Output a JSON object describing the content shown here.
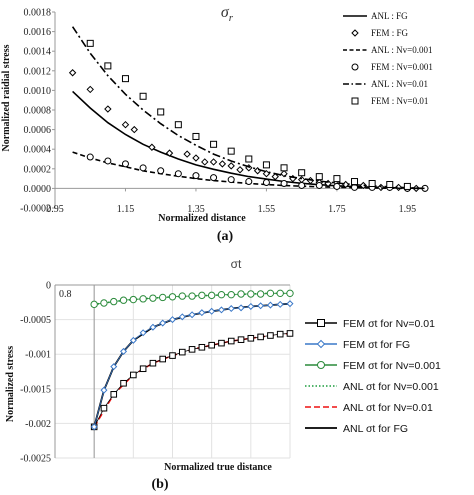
{
  "chart_data": [
    {
      "type": "line",
      "panel_label": "(a)",
      "title": "σr",
      "title_symbol": "σ",
      "title_subscript": "r",
      "xlabel": "Normalized distance",
      "ylabel": "Normalized  raidial stress",
      "xlim": [
        0.95,
        2.0
      ],
      "ylim": [
        -0.0002,
        0.0018
      ],
      "xticks": [
        "0.95",
        "1.15",
        "1.35",
        "1.55",
        "1.75",
        "1.95"
      ],
      "yticks": [
        "-0.0002",
        "0.0000",
        "0.0002",
        "0.0004",
        "0.0006",
        "0.0008",
        "0.0010",
        "0.0012",
        "0.0014",
        "0.0016",
        "0.0018"
      ],
      "grid": false,
      "legend_position": "top-right",
      "series": [
        {
          "name": "ANL : FG",
          "style": "solid",
          "x": [
            1.0,
            1.05,
            1.1,
            1.15,
            1.2,
            1.25,
            1.3,
            1.35,
            1.4,
            1.45,
            1.5,
            1.55,
            1.6,
            1.65,
            1.7,
            1.75,
            1.8,
            1.85,
            1.9,
            1.95,
            2.0
          ],
          "y": [
            0.00099,
            0.00082,
            0.00067,
            0.00055,
            0.00045,
            0.00037,
            0.0003,
            0.00024,
            0.000195,
            0.000155,
            0.00012,
            9.5e-05,
            7e-05,
            5.2e-05,
            3.8e-05,
            2.7e-05,
            1.8e-05,
            1.2e-05,
            7e-06,
            3e-06,
            0.0
          ]
        },
        {
          "name": "FEM : FG",
          "style": "diamond",
          "x": [
            1.0,
            1.05,
            1.1,
            1.15,
            1.175,
            1.225,
            1.275,
            1.325,
            1.35,
            1.375,
            1.4,
            1.425,
            1.45,
            1.475,
            1.5,
            1.525,
            1.55,
            1.575,
            1.6,
            1.625,
            1.65,
            1.675,
            1.7,
            1.725,
            1.75,
            1.775,
            1.8,
            1.825,
            1.85,
            1.875,
            1.9,
            1.925,
            1.95,
            1.975,
            2.0
          ],
          "y": [
            0.00118,
            0.00101,
            0.00081,
            0.00065,
            0.0006,
            0.00042,
            0.00036,
            0.00035,
            0.00031,
            0.00027,
            0.00027,
            0.00025,
            0.00023,
            0.00019,
            0.00021,
            0.00018,
            0.00015,
            0.00012,
            0.00015,
            0.0001,
            9e-05,
            8e-05,
            6e-05,
            5e-05,
            6e-05,
            4e-05,
            3e-05,
            3e-05,
            2e-05,
            1e-05,
            1e-05,
            1e-05,
            0.0,
            0.0,
            0.0
          ]
        },
        {
          "name": "ANL : Nv=0.001",
          "style": "dashed",
          "x": [
            1.0,
            1.05,
            1.1,
            1.15,
            1.2,
            1.25,
            1.3,
            1.35,
            1.4,
            1.45,
            1.5,
            1.55,
            1.6,
            1.65,
            1.7,
            1.75,
            1.8,
            1.85,
            1.9,
            1.95,
            2.0
          ],
          "y": [
            0.00037,
            0.00031,
            0.00026,
            0.00022,
            0.00018,
            0.00015,
            0.000125,
            0.0001,
            8e-05,
            6.5e-05,
            5e-05,
            4e-05,
            3e-05,
            2.2e-05,
            1.6e-05,
            1.1e-05,
            7e-06,
            4e-06,
            2e-06,
            1e-06,
            0.0
          ]
        },
        {
          "name": "FEM : Nv=0.001",
          "style": "circle",
          "x": [
            1.05,
            1.1,
            1.15,
            1.2,
            1.25,
            1.3,
            1.35,
            1.4,
            1.45,
            1.5,
            1.55,
            1.6,
            1.65,
            1.7,
            1.75,
            1.8,
            1.85,
            1.9,
            1.95,
            2.0
          ],
          "y": [
            0.00032,
            0.00028,
            0.00025,
            0.00021,
            0.00018,
            0.00015,
            0.00013,
            0.00011,
            9e-05,
            7e-05,
            6e-05,
            5e-05,
            3e-05,
            3e-05,
            2e-05,
            1e-05,
            1e-05,
            1e-05,
            0.0,
            0.0
          ]
        },
        {
          "name": "ANL : Nv=0.01",
          "style": "dashdot",
          "x": [
            1.0,
            1.05,
            1.1,
            1.15,
            1.2,
            1.25,
            1.3,
            1.35,
            1.4,
            1.45,
            1.5,
            1.55,
            1.6,
            1.65,
            1.7,
            1.75,
            1.8,
            1.85,
            1.9,
            1.95,
            2.0
          ],
          "y": [
            0.00165,
            0.00138,
            0.00115,
            0.00096,
            0.0008,
            0.00066,
            0.00054,
            0.00044,
            0.00035,
            0.00028,
            0.00022,
            0.00017,
            0.00013,
            0.0001,
            7.5e-05,
            5.5e-05,
            3.8e-05,
            2.5e-05,
            1.5e-05,
            7e-06,
            0.0
          ]
        },
        {
          "name": "FEM : Nv=0.01",
          "style": "square",
          "x": [
            1.05,
            1.1,
            1.15,
            1.2,
            1.25,
            1.3,
            1.35,
            1.4,
            1.45,
            1.5,
            1.55,
            1.6,
            1.65,
            1.7,
            1.75,
            1.8,
            1.85,
            1.9,
            1.95
          ],
          "y": [
            0.00148,
            0.00125,
            0.00112,
            0.00094,
            0.00078,
            0.00065,
            0.00053,
            0.00045,
            0.00038,
            0.0003,
            0.00024,
            0.00021,
            0.00016,
            0.00012,
            0.0001,
            7e-05,
            5e-05,
            4e-05,
            2e-05
          ]
        }
      ]
    },
    {
      "type": "line",
      "panel_label": "(b)",
      "title": "σt",
      "xlabel": "Normalized true distance",
      "ylabel": "Normalized stress",
      "xlim": [
        0.8,
        2.0
      ],
      "ylim": [
        -0.0025,
        0.0
      ],
      "xticks": [
        "0.8"
      ],
      "yticks": [
        "0",
        "-0.0005",
        "-0.001",
        "-0.0015",
        "-0.002",
        "-0.0025"
      ],
      "grid": true,
      "legend_position": "right",
      "series": [
        {
          "name": "FEM σt  for Nv=0.01",
          "style": "square",
          "x": [
            1.0,
            1.05,
            1.1,
            1.15,
            1.2,
            1.25,
            1.3,
            1.35,
            1.4,
            1.45,
            1.5,
            1.55,
            1.6,
            1.65,
            1.7,
            1.75,
            1.8,
            1.85,
            1.9,
            1.95,
            2.0
          ],
          "y": [
            -0.00205,
            -0.00178,
            -0.00158,
            -0.00142,
            -0.0013,
            -0.00121,
            -0.00113,
            -0.00107,
            -0.00102,
            -0.00097,
            -0.00093,
            -0.0009,
            -0.00087,
            -0.00084,
            -0.00081,
            -0.00079,
            -0.00077,
            -0.00075,
            -0.00073,
            -0.00071,
            -0.0007
          ]
        },
        {
          "name": "FEM σt for FG",
          "style": "diamond",
          "x": [
            1.0,
            1.05,
            1.1,
            1.15,
            1.2,
            1.25,
            1.3,
            1.35,
            1.4,
            1.45,
            1.5,
            1.55,
            1.6,
            1.65,
            1.7,
            1.75,
            1.8,
            1.85,
            1.9,
            1.95,
            2.0
          ],
          "y": [
            -0.00205,
            -0.00152,
            -0.00118,
            -0.00096,
            -0.0008,
            -0.00069,
            -0.00061,
            -0.00055,
            -0.0005,
            -0.00046,
            -0.00043,
            -0.0004,
            -0.00038,
            -0.00036,
            -0.00034,
            -0.00033,
            -0.00031,
            -0.0003,
            -0.00029,
            -0.00028,
            -0.00027
          ]
        },
        {
          "name": "FEM σt for Nv=0.001",
          "style": "circle",
          "x": [
            1.0,
            1.05,
            1.1,
            1.15,
            1.2,
            1.25,
            1.3,
            1.35,
            1.4,
            1.45,
            1.5,
            1.55,
            1.6,
            1.65,
            1.7,
            1.75,
            1.8,
            1.85,
            1.9,
            1.95,
            2.0
          ],
          "y": [
            -0.00028,
            -0.00026,
            -0.00024,
            -0.00022,
            -0.00021,
            -0.0002,
            -0.00019,
            -0.00018,
            -0.00017,
            -0.00016,
            -0.00016,
            -0.00015,
            -0.00015,
            -0.00014,
            -0.00014,
            -0.00013,
            -0.00013,
            -0.00013,
            -0.00012,
            -0.00012,
            -0.00012
          ]
        },
        {
          "name": "ANL σt for Nv=0.001",
          "style": "dotted",
          "x": [
            1.0,
            1.1,
            1.2,
            1.3,
            1.4,
            1.5,
            1.6,
            1.7,
            1.8,
            1.9,
            2.0
          ],
          "y": [
            -0.00028,
            -0.00024,
            -0.00021,
            -0.00019,
            -0.00017,
            -0.00016,
            -0.00015,
            -0.00014,
            -0.00013,
            -0.00012,
            -0.00012
          ]
        },
        {
          "name": "ANL σt for Nv=0.01",
          "style": "dashed",
          "x": [
            1.0,
            1.1,
            1.2,
            1.3,
            1.4,
            1.5,
            1.6,
            1.7,
            1.8,
            1.9,
            2.0
          ],
          "y": [
            -0.00205,
            -0.00158,
            -0.0013,
            -0.00113,
            -0.00102,
            -0.00093,
            -0.00087,
            -0.00081,
            -0.00077,
            -0.00073,
            -0.0007
          ]
        },
        {
          "name": "ANL σt for FG",
          "style": "solid",
          "x": [
            1.0,
            1.05,
            1.1,
            1.15,
            1.2,
            1.3,
            1.4,
            1.5,
            1.6,
            1.7,
            1.8,
            1.9,
            2.0
          ],
          "y": [
            -0.00205,
            -0.00152,
            -0.00118,
            -0.00096,
            -0.0008,
            -0.00061,
            -0.0005,
            -0.00043,
            -0.00038,
            -0.00034,
            -0.00031,
            -0.00029,
            -0.00027
          ]
        }
      ]
    }
  ]
}
